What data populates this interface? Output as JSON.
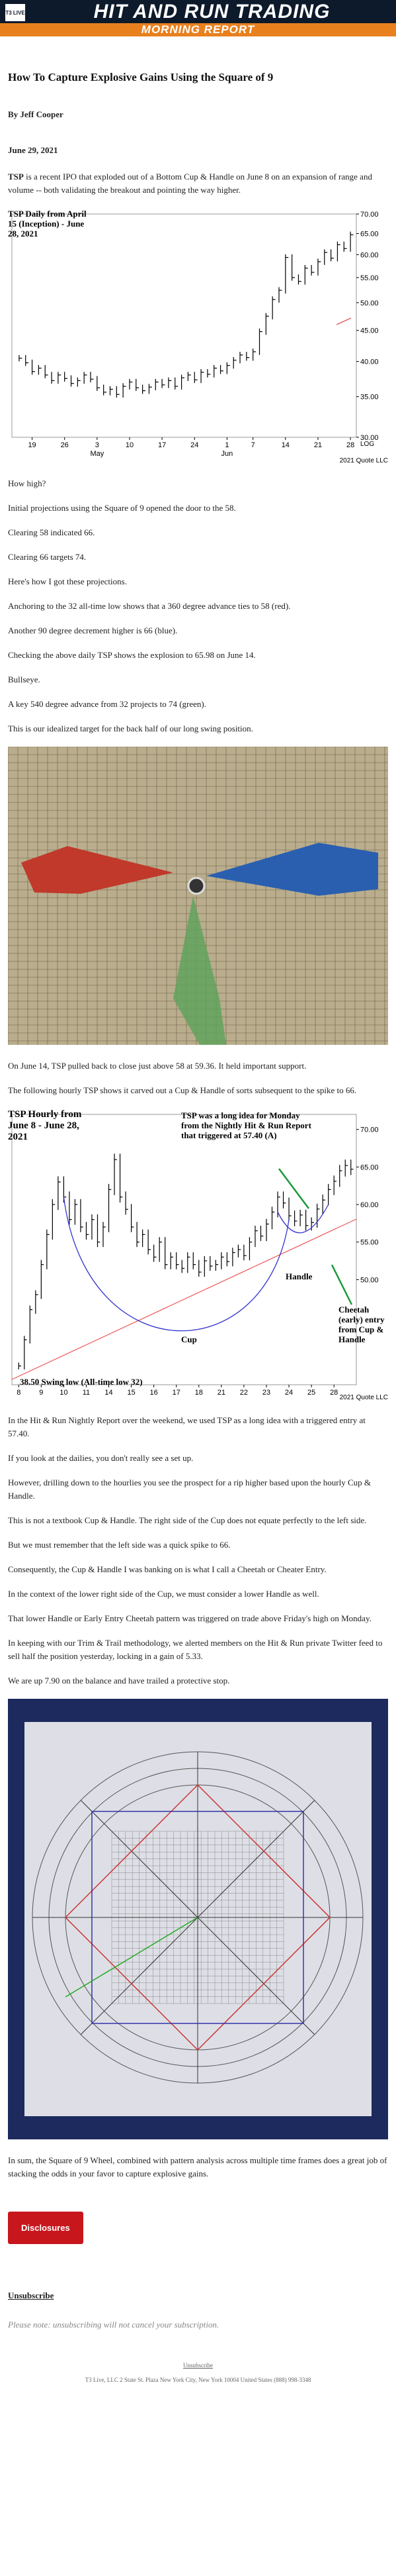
{
  "header": {
    "logo": "T3 LIVE",
    "brand": "HIT AND RUN TRADING",
    "subtitle": "MORNING REPORT"
  },
  "article": {
    "title": "How To Capture Explosive Gains Using the Square of 9",
    "author": "By Jeff Cooper",
    "date": "June 29, 2021",
    "intro_lead": "TSP",
    "intro_text": "is a recent IPO that exploded out of a Bottom Cup & Handle on June 8 on an expansion of range and volume -- both validating the breakout and pointing the way higher.",
    "body1": [
      "How high?",
      "Initial projections using the Square of 9 opened the door to the 58.",
      "Clearing 58 indicated 66.",
      "Clearing 66 targets 74.",
      "Here's how I got these projections.",
      "Anchoring to the 32 all-time low shows that a 360 degree advance ties to 58 (red).",
      "Another 90 degree decrement higher is 66 (blue).",
      "Checking the above daily TSP shows the explosion to 65.98 on June 14.",
      "Bullseye.",
      "A key 540 degree advance from 32 projects to 74 (green).",
      "This is our idealized target for the back half of our long swing position."
    ],
    "body2": [
      "On June 14, TSP pulled back to close just above 58 at 59.36. It held important support.",
      "The following hourly TSP shows it carved out a Cup & Handle of sorts subsequent to the spike to 66."
    ],
    "body3": [
      "In the Hit & Run Nightly Report over the weekend, we used TSP as a long idea with a triggered entry at 57.40.",
      "If you look at the dailies, you don't really see a set up.",
      "However, drilling down to the hourlies you see the prospect for a rip higher based upon the hourly Cup & Handle.",
      "This is not a textbook Cup & Handle. The right side of the Cup does not equate perfectly to the left side.",
      "But we must remember that the left side was a quick spike to 66.",
      "Consequently, the Cup & Handle I was banking on is what I call a Cheetah or Cheater Entry.",
      "In the context of the lower right side of the Cup, we must consider a lower Handle as well.",
      "That lower Handle or Early Entry Cheetah pattern was triggered on trade above Friday's high on Monday.",
      "In keeping with our Trim & Trail methodology, we alerted members on the Hit & Run private Twitter feed to sell half the position yesterday, locking in a gain of 5.33.",
      "We are up 7.90 on the balance and have trailed a protective stop."
    ],
    "body4": [
      "In sum, the Square of 9 Wheel, combined with pattern analysis across multiple time frames does a great job of stacking the odds in your favor to capture explosive gains."
    ]
  },
  "charts": [
    {
      "type": "ohlc",
      "title": "TSP Daily from April 15 (Inception) - June 28, 2021",
      "values": [
        40.5,
        39.8,
        38.5,
        39,
        38,
        37.2,
        38,
        37.5,
        36.8,
        37.2,
        38,
        37.4,
        36.2,
        35.6,
        36,
        35.3,
        36.4,
        37,
        36.2,
        35.8,
        36.3,
        37,
        36.6,
        37.2,
        36.4,
        37.6,
        38,
        37.3,
        38.4,
        38.1,
        39,
        38.6,
        39.4,
        40.2,
        41,
        40.6,
        41.5,
        44.8,
        47.5,
        50.6,
        52.4,
        59.36,
        55,
        54.2,
        57,
        56.1,
        58.4,
        60.5,
        59.2,
        62.3,
        61.4,
        64.7
      ],
      "ylim": [
        30,
        70
      ],
      "log": true,
      "scale_label": "LOG",
      "yticks": [
        {
          "value": 70,
          "label": "70.00"
        },
        {
          "value": 65,
          "label": "65.00"
        },
        {
          "value": 60,
          "label": "60.00"
        },
        {
          "value": 55,
          "label": "55.00"
        },
        {
          "value": 50,
          "label": "50.00"
        },
        {
          "value": 45,
          "label": "45.00"
        },
        {
          "value": 40,
          "label": "40.00"
        },
        {
          "value": 35,
          "label": "35.00"
        },
        {
          "value": 30,
          "label": "30.00"
        }
      ],
      "xticks": [
        {
          "value": 2,
          "label": "19"
        },
        {
          "value": 7,
          "label": "26"
        },
        {
          "value": 12,
          "label": "3"
        },
        {
          "value": 17,
          "label": "10"
        },
        {
          "value": 22,
          "label": "17"
        },
        {
          "value": 27,
          "label": "24"
        },
        {
          "value": 32,
          "label": "1"
        },
        {
          "value": 36,
          "label": "7"
        },
        {
          "value": 41,
          "label": "14"
        },
        {
          "value": 46,
          "label": "21"
        },
        {
          "value": 51,
          "label": "28"
        }
      ],
      "months": [
        {
          "value": 12,
          "label": "May"
        },
        {
          "value": 32,
          "label": "Jun"
        }
      ],
      "credit": "2021 Quote LLC",
      "color": "#000000"
    },
    {
      "type": "ohlc",
      "title": "TSP Hourly from June 8 - June 28, 2021",
      "values": [
        38.5,
        42,
        46,
        48,
        52,
        56,
        60,
        63,
        61,
        58,
        60,
        57,
        56,
        58,
        55,
        57,
        62,
        65.98,
        61,
        59.36,
        57,
        55,
        56,
        54,
        53,
        55,
        52,
        53,
        52,
        51.5,
        53,
        52,
        51,
        52.5,
        51.8,
        52,
        53,
        52.4,
        53.6,
        54,
        53.2,
        55,
        56.5,
        55.8,
        57.4,
        59,
        61,
        60.2,
        58.5,
        57.8,
        58.6,
        57.2,
        57.6,
        59.4,
        60.6,
        62,
        63.1,
        64.5,
        65.2,
        64.7
      ],
      "ylim": [
        36,
        72
      ],
      "log": false,
      "yticks": [
        {
          "value": 70,
          "label": "70.00"
        },
        {
          "value": 65,
          "label": "65.00"
        },
        {
          "value": 60,
          "label": "60.00"
        },
        {
          "value": 55,
          "label": "55.00"
        },
        {
          "value": 50,
          "label": "50.00"
        }
      ],
      "xticks": [
        {
          "value": 0,
          "label": "8"
        },
        {
          "value": 4,
          "label": "9"
        },
        {
          "value": 8,
          "label": "10"
        },
        {
          "value": 12,
          "label": "11"
        },
        {
          "value": 16,
          "label": "14"
        },
        {
          "value": 20,
          "label": "15"
        },
        {
          "value": 24,
          "label": "16"
        },
        {
          "value": 28,
          "label": "17"
        },
        {
          "value": 32,
          "label": "18"
        },
        {
          "value": 36,
          "label": "21"
        },
        {
          "value": 40,
          "label": "22"
        },
        {
          "value": 44,
          "label": "23"
        },
        {
          "value": 48,
          "label": "24"
        },
        {
          "value": 52,
          "label": "25"
        },
        {
          "value": 56,
          "label": "28"
        }
      ],
      "annotations": {
        "idea": "TSP was a long idea for Monday from the Nightly Hit & Run Report that triggered at 57.40 (A)",
        "handle": "Handle",
        "cheetah": "Cheetah (early) entry from Cup & Handle",
        "cup": "Cup",
        "low": "38.50 Swing low (All-time low 32)"
      },
      "credit": "2021 Quote LLC",
      "color": "#000000"
    }
  ],
  "footer": {
    "disclosures": "Disclosures",
    "unsubscribe": "Unsubscribe",
    "note": "Please note: unsubscribing will not cancel your subscription.",
    "footer_unsubscribe": "Unsubscribe",
    "address": "T3 Live, LLC 2 State St. Plaza New York City, New York 10004 United States (888) 998-3348"
  }
}
